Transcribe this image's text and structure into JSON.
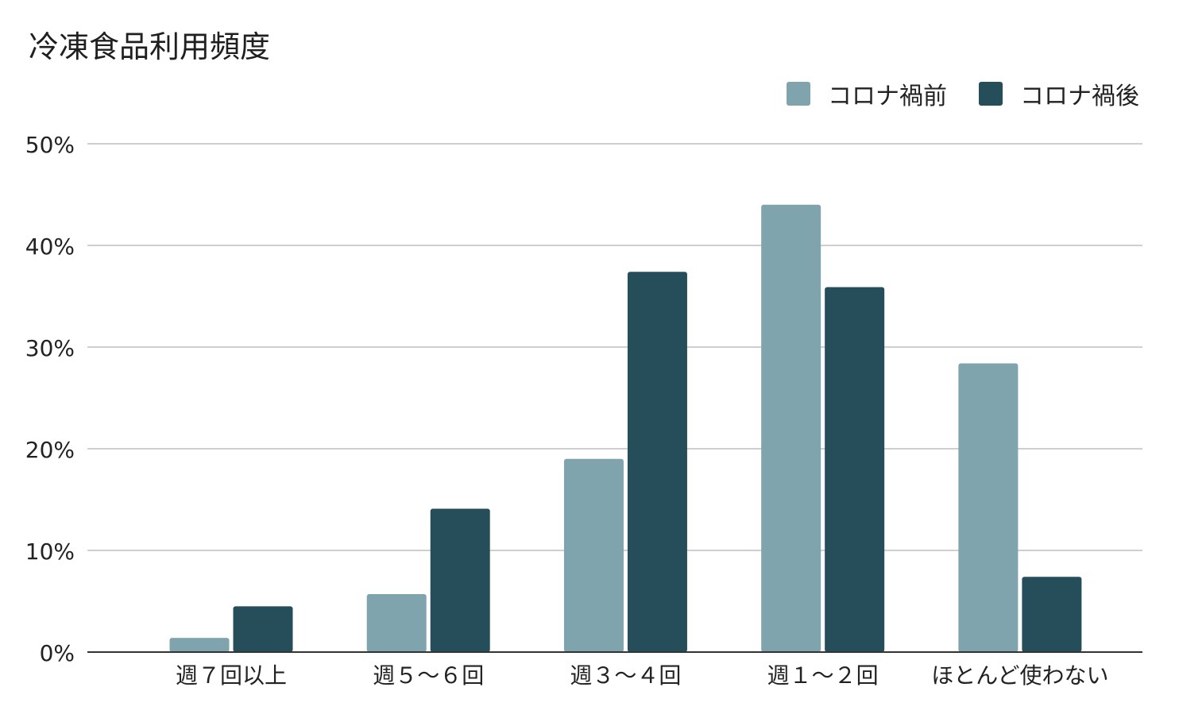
{
  "chart_data": {
    "type": "bar",
    "title": "冷凍食品利用頻度",
    "categories": [
      "週７回以上",
      "週５〜６回",
      "週３〜４回",
      "週１〜２回",
      "ほとんど使わない"
    ],
    "series": [
      {
        "name": "コロナ禍前",
        "color": "#7fa4ad",
        "values": [
          1.4,
          5.7,
          19.0,
          44.0,
          28.4
        ]
      },
      {
        "name": "コロナ禍後",
        "color": "#264d5a",
        "values": [
          4.5,
          14.1,
          37.4,
          35.9,
          7.4
        ]
      }
    ],
    "ylim": [
      0,
      50
    ],
    "yticks": [
      "0%",
      "10%",
      "20%",
      "30%",
      "40%",
      "50%"
    ],
    "grid": true,
    "legend_position": "top-right",
    "xlabel": "",
    "ylabel": ""
  }
}
